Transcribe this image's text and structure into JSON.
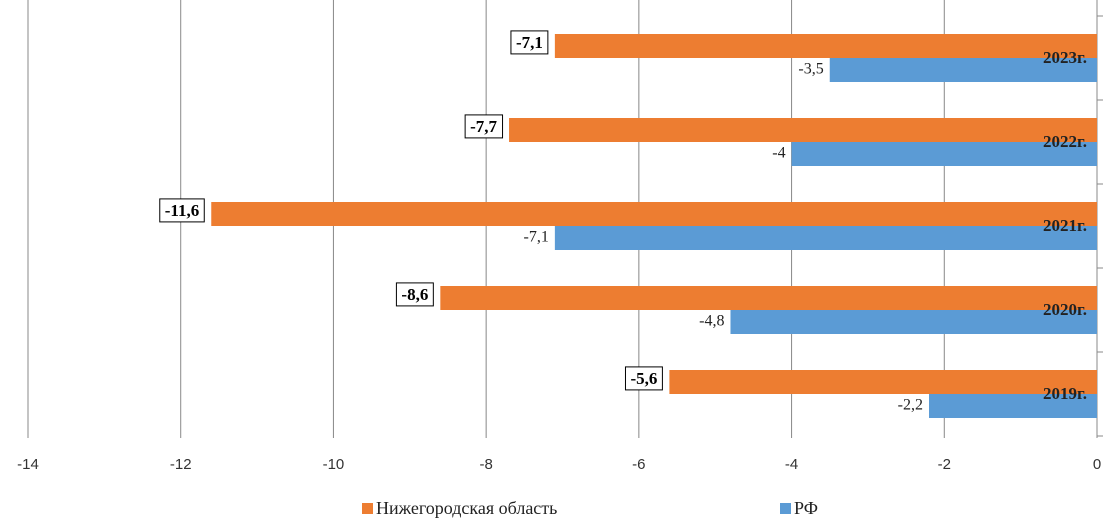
{
  "chart_data": {
    "type": "bar",
    "orientation": "horizontal",
    "categories": [
      "2023г.",
      "2022г.",
      "2021г.",
      "2020г.",
      "2019г."
    ],
    "series": [
      {
        "name": "Нижегородская область",
        "color": "#ed7d31",
        "values": [
          -7.1,
          -7.7,
          -11.6,
          -8.6,
          -5.6
        ],
        "value_labels": [
          "-7,1",
          "-7,7",
          "-11,6",
          "-8,6",
          "-5,6"
        ]
      },
      {
        "name": "РФ",
        "color": "#5b9bd5",
        "values": [
          -3.5,
          -4,
          -7.1,
          -4.8,
          -2.2
        ],
        "value_labels": [
          "-3,5",
          "-4",
          "-7,1",
          "-4,8",
          "-2,2"
        ]
      }
    ],
    "xlim": [
      -14,
      0
    ],
    "xticks": [
      -14,
      -12,
      -10,
      -8,
      -6,
      -4,
      -2,
      0
    ],
    "grid": true,
    "legend": "bottom"
  }
}
